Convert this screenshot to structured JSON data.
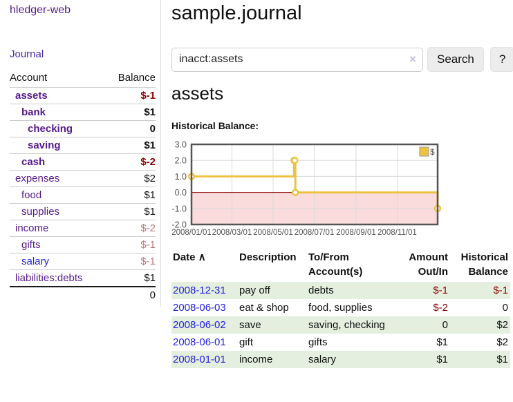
{
  "app": {
    "brand": "hledger-web",
    "nav_journal": "Journal"
  },
  "colors": {
    "link_purple": "#551a8b",
    "link_blue": "#2222dd",
    "negative_strong": "#880000",
    "negative_soft": "#bb7777",
    "register_stripe_green": "#e4efdf",
    "chart_line_gold": "#edc240",
    "chart_zero_line_red": "#8b0000",
    "chart_negative_fill_pink": "#fadcdc",
    "chart_border_gray": "#545454"
  },
  "sidebar": {
    "col_account": "Account",
    "col_balance": "Balance",
    "accounts": [
      {
        "name": "assets",
        "balance": "$-1",
        "depth": 1,
        "bold": true,
        "negative": true,
        "link": "purple"
      },
      {
        "name": "bank",
        "balance": "$1",
        "depth": 2,
        "bold": true,
        "negative": false,
        "link": "purple"
      },
      {
        "name": "checking",
        "balance": "0",
        "depth": 3,
        "bold": true,
        "negative": false,
        "link": "purple"
      },
      {
        "name": "saving",
        "balance": "$1",
        "depth": 3,
        "bold": true,
        "negative": false,
        "link": "purple"
      },
      {
        "name": "cash",
        "balance": "$-2",
        "depth": 2,
        "bold": true,
        "negative": true,
        "link": "purple"
      },
      {
        "name": "expenses",
        "balance": "$2",
        "depth": 1,
        "bold": false,
        "negative": false,
        "link": "purple"
      },
      {
        "name": "food",
        "balance": "$1",
        "depth": 2,
        "bold": false,
        "negative": false,
        "link": "purple"
      },
      {
        "name": "supplies",
        "balance": "$1",
        "depth": 2,
        "bold": false,
        "negative": false,
        "link": "purple"
      },
      {
        "name": "income",
        "balance": "$-2",
        "depth": 1,
        "bold": false,
        "negative": true,
        "link": "purple"
      },
      {
        "name": "gifts",
        "balance": "$-1",
        "depth": 2,
        "bold": false,
        "negative": true,
        "link": "purple"
      },
      {
        "name": "salary",
        "balance": "$-1",
        "depth": 2,
        "bold": false,
        "negative": true,
        "link": "blue"
      },
      {
        "name": "liabilities:debts",
        "balance": "$1",
        "depth": 1,
        "bold": false,
        "negative": false,
        "link": "purple"
      }
    ],
    "total": "0"
  },
  "main": {
    "title": "sample.journal",
    "search": {
      "value": "inacct:assets",
      "clear": "×",
      "button": "Search",
      "help": "?"
    },
    "account_heading": "assets",
    "chart_label": "Historical Balance:"
  },
  "chart_data": {
    "type": "line",
    "step": true,
    "title": "Historical Balance",
    "xlabel": "",
    "ylabel": "",
    "ylim": [
      -2.0,
      3.0
    ],
    "y_ticks": [
      3.0,
      2.0,
      1.0,
      0.0,
      -1.0,
      -2.0
    ],
    "xlim_days": [
      0,
      365
    ],
    "x_ticks": [
      {
        "label": "2008/01/01",
        "day": 0
      },
      {
        "label": "2008/03/01",
        "day": 60
      },
      {
        "label": "2008/05/01",
        "day": 121
      },
      {
        "label": "2008/07/01",
        "day": 182
      },
      {
        "label": "2008/09/01",
        "day": 244
      },
      {
        "label": "2008/11/01",
        "day": 305
      }
    ],
    "grid": true,
    "negative_region_shaded": true,
    "legend": {
      "position": "top-right",
      "entries": [
        "$"
      ]
    },
    "series": [
      {
        "name": "$",
        "color": "#edc240",
        "points": [
          {
            "date": "2008-01-01",
            "day": 0,
            "value": 1
          },
          {
            "date": "2008-06-01",
            "day": 152,
            "value": 2
          },
          {
            "date": "2008-06-02",
            "day": 153,
            "value": 2
          },
          {
            "date": "2008-06-03",
            "day": 154,
            "value": 0
          },
          {
            "date": "2008-12-31",
            "day": 365,
            "value": -1
          }
        ]
      }
    ]
  },
  "register": {
    "sort_icon": "∧",
    "headers": [
      "Date",
      "Description",
      "To/From Account(s)",
      "Amount Out/In",
      "Historical Balance"
    ],
    "rows": [
      {
        "date": "2008-12-31",
        "description": "pay off",
        "accounts": "debts",
        "amount": "$-1",
        "balance": "$-1",
        "amount_negative": true,
        "balance_negative": true
      },
      {
        "date": "2008-06-03",
        "description": "eat & shop",
        "accounts": "food, supplies",
        "amount": "$-2",
        "balance": "0",
        "amount_negative": true,
        "balance_negative": false
      },
      {
        "date": "2008-06-02",
        "description": "save",
        "accounts": "saving, checking",
        "amount": "0",
        "balance": "$2",
        "amount_negative": false,
        "balance_negative": false
      },
      {
        "date": "2008-06-01",
        "description": "gift",
        "accounts": "gifts",
        "amount": "$1",
        "balance": "$2",
        "amount_negative": false,
        "balance_negative": false
      },
      {
        "date": "2008-01-01",
        "description": "income",
        "accounts": "salary",
        "amount": "$1",
        "balance": "$1",
        "amount_negative": false,
        "balance_negative": false
      }
    ]
  }
}
